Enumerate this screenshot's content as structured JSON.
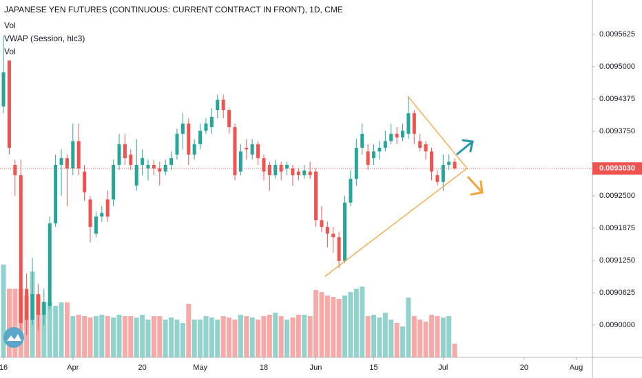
{
  "chart_data": {
    "type": "candlestick",
    "title": "JAPANESE YEN FUTURES (CONTINUOUS: CURRENT CONTRACT IN FRONT), 1D, CME",
    "indicators": [
      "Vol",
      "VWAP (Session, hlc3)",
      "Vol"
    ],
    "colors": {
      "up": "#26a69a",
      "down": "#ef5350"
    },
    "ylim": [
      0.0089375,
      0.009629
    ],
    "yticks": [
      {
        "value": 0.009,
        "label": "0.0090000"
      },
      {
        "value": 0.0090625,
        "label": "0.0090625"
      },
      {
        "value": 0.009125,
        "label": "0.0091250"
      },
      {
        "value": 0.0091875,
        "label": "0.0091875"
      },
      {
        "value": 0.00925,
        "label": "0.0092500"
      },
      {
        "value": 0.009375,
        "label": "0.0093750"
      },
      {
        "value": 0.0094375,
        "label": "0.0094375"
      },
      {
        "value": 0.0095,
        "label": "0.0095000"
      },
      {
        "value": 0.0095625,
        "label": "0.0095625"
      }
    ],
    "last_price": {
      "value": 0.009303,
      "label": "0.0093030"
    },
    "xlim": [
      -0.6,
      101.8
    ],
    "xticks": [
      {
        "value": 0,
        "label": "16"
      },
      {
        "value": 12,
        "label": "Apr"
      },
      {
        "value": 24,
        "label": "20"
      },
      {
        "value": 34,
        "label": "May"
      },
      {
        "value": 45,
        "label": "18"
      },
      {
        "value": 54,
        "label": "Jun"
      },
      {
        "value": 64,
        "label": "15"
      },
      {
        "value": 76,
        "label": "Jul"
      },
      {
        "value": 90,
        "label": "20"
      },
      {
        "value": 99,
        "label": "Aug"
      }
    ],
    "ohlc": [
      [
        0.009423,
        0.00956,
        0.00941,
        0.009489
      ],
      [
        0.009512,
        0.009512,
        0.00933,
        0.009343
      ],
      [
        0.00931,
        0.00932,
        0.00925,
        0.00929
      ],
      [
        0.00929,
        0.00932,
        0.00899,
        0.009004
      ],
      [
        0.00907,
        0.0091,
        0.00898,
        0.00901
      ],
      [
        0.00901,
        0.00913,
        0.009,
        0.00906
      ],
      [
        0.00906,
        0.00908,
        0.00899,
        0.00902
      ],
      [
        0.00902,
        0.00907,
        0.009,
        0.009045
      ],
      [
        0.009037,
        0.00921,
        0.00903,
        0.009197
      ],
      [
        0.009197,
        0.00933,
        0.00919,
        0.00931
      ],
      [
        0.00931,
        0.00934,
        0.00925,
        0.009323
      ],
      [
        0.009323,
        0.00933,
        0.00923,
        0.009303
      ],
      [
        0.009303,
        0.00939,
        0.00929,
        0.009356
      ],
      [
        0.009356,
        0.00939,
        0.00929,
        0.009303
      ],
      [
        0.009297,
        0.00931,
        0.00924,
        0.009257
      ],
      [
        0.009243,
        0.00925,
        0.00916,
        0.00919
      ],
      [
        0.009177,
        0.00922,
        0.00917,
        0.00921
      ],
      [
        0.00921,
        0.00923,
        0.0092,
        0.009217
      ],
      [
        0.009243,
        0.00926,
        0.0092,
        0.00921
      ],
      [
        0.009243,
        0.00932,
        0.00923,
        0.00931
      ],
      [
        0.00931,
        0.00937,
        0.0093,
        0.00935
      ],
      [
        0.00935,
        0.00937,
        0.00931,
        0.009323
      ],
      [
        0.00933,
        0.00934,
        0.0093,
        0.00931
      ],
      [
        0.00927,
        0.00936,
        0.00926,
        0.00931
      ],
      [
        0.00931,
        0.00934,
        0.00929,
        0.009323
      ],
      [
        0.009303,
        0.00932,
        0.00928,
        0.00931
      ],
      [
        0.00931,
        0.00932,
        0.00929,
        0.009303
      ],
      [
        0.009303,
        0.009316,
        0.00927,
        0.009297
      ],
      [
        0.009297,
        0.00932,
        0.00929,
        0.00931
      ],
      [
        0.00931,
        0.009336,
        0.0093,
        0.009323
      ],
      [
        0.00933,
        0.00938,
        0.00932,
        0.00937
      ],
      [
        0.00937,
        0.00941,
        0.00934,
        0.00939
      ],
      [
        0.00939,
        0.0094,
        0.00931,
        0.00933
      ],
      [
        0.00933,
        0.00936,
        0.00932,
        0.00935
      ],
      [
        0.00935,
        0.00939,
        0.00934,
        0.009376
      ],
      [
        0.009376,
        0.0094,
        0.00937,
        0.00939
      ],
      [
        0.009383,
        0.00942,
        0.00937,
        0.009403
      ],
      [
        0.009416,
        0.009446,
        0.0094,
        0.009436
      ],
      [
        0.009436,
        0.009446,
        0.0094,
        0.009416
      ],
      [
        0.009416,
        0.00942,
        0.00937,
        0.009383
      ],
      [
        0.009383,
        0.00939,
        0.00928,
        0.00929
      ],
      [
        0.009297,
        0.00935,
        0.00929,
        0.009336
      ],
      [
        0.009343,
        0.00936,
        0.00932,
        0.00934
      ],
      [
        0.00933,
        0.00936,
        0.00932,
        0.00935
      ],
      [
        0.00935,
        0.009356,
        0.00931,
        0.009323
      ],
      [
        0.009323,
        0.00933,
        0.00928,
        0.009297
      ],
      [
        0.00931,
        0.009316,
        0.00926,
        0.00929
      ],
      [
        0.00929,
        0.00932,
        0.009283,
        0.00931
      ],
      [
        0.00931,
        0.009316,
        0.00928,
        0.009297
      ],
      [
        0.009303,
        0.009316,
        0.00929,
        0.00931
      ],
      [
        0.009303,
        0.00931,
        0.00927,
        0.00929
      ],
      [
        0.009297,
        0.009303,
        0.00928,
        0.00929
      ],
      [
        0.00929,
        0.00931,
        0.009283,
        0.009299
      ],
      [
        0.009297,
        0.009316,
        0.009283,
        0.00929
      ],
      [
        0.009297,
        0.009303,
        0.00919,
        0.009203
      ],
      [
        0.009203,
        0.00923,
        0.00918,
        0.00919
      ],
      [
        0.00919,
        0.0092,
        0.00915,
        0.009177
      ],
      [
        0.009177,
        0.00919,
        0.00914,
        0.00917
      ],
      [
        0.00917,
        0.00918,
        0.00911,
        0.009124
      ],
      [
        0.009124,
        0.00925,
        0.00912,
        0.009237
      ],
      [
        0.009237,
        0.0093,
        0.00923,
        0.009283
      ],
      [
        0.009283,
        0.00936,
        0.00927,
        0.009343
      ],
      [
        0.009343,
        0.00939,
        0.00933,
        0.00937
      ],
      [
        0.009336,
        0.00935,
        0.0093,
        0.00931
      ],
      [
        0.009323,
        0.00935,
        0.00931,
        0.009336
      ],
      [
        0.009336,
        0.009356,
        0.00932,
        0.009343
      ],
      [
        0.009343,
        0.009376,
        0.009336,
        0.009356
      ],
      [
        0.009356,
        0.00939,
        0.00935,
        0.00937
      ],
      [
        0.00937,
        0.009383,
        0.00935,
        0.009363
      ],
      [
        0.009363,
        0.00939,
        0.009356,
        0.009376
      ],
      [
        0.00937,
        0.009443,
        0.00936,
        0.00941
      ],
      [
        0.00941,
        0.009416,
        0.00935,
        0.00937
      ],
      [
        0.009356,
        0.00937,
        0.009336,
        0.009343
      ],
      [
        0.00935,
        0.009356,
        0.00932,
        0.009336
      ],
      [
        0.009336,
        0.009343,
        0.00928,
        0.009297
      ],
      [
        0.00929,
        0.0093,
        0.00927,
        0.009277
      ],
      [
        0.009277,
        0.00933,
        0.00926,
        0.00931
      ],
      [
        0.00931,
        0.00933,
        0.0093,
        0.009316
      ],
      [
        0.009316,
        0.009323,
        0.0093,
        0.009303
      ]
    ],
    "volume": [
      135,
      100,
      100,
      100,
      90,
      125,
      90,
      80,
      80,
      75,
      80,
      80,
      60,
      62,
      60,
      58,
      60,
      62,
      60,
      58,
      62,
      60,
      60,
      58,
      62,
      55,
      60,
      60,
      55,
      58,
      55,
      50,
      78,
      55,
      55,
      60,
      58,
      55,
      60,
      58,
      55,
      62,
      60,
      58,
      55,
      60,
      62,
      65,
      60,
      55,
      58,
      62,
      62,
      60,
      98,
      95,
      90,
      88,
      85,
      90,
      95,
      100,
      103,
      60,
      62,
      58,
      65,
      55,
      50,
      45,
      87,
      60,
      55,
      52,
      62,
      60,
      58,
      60,
      20
    ],
    "volume_lim": [
      0,
      150
    ]
  }
}
